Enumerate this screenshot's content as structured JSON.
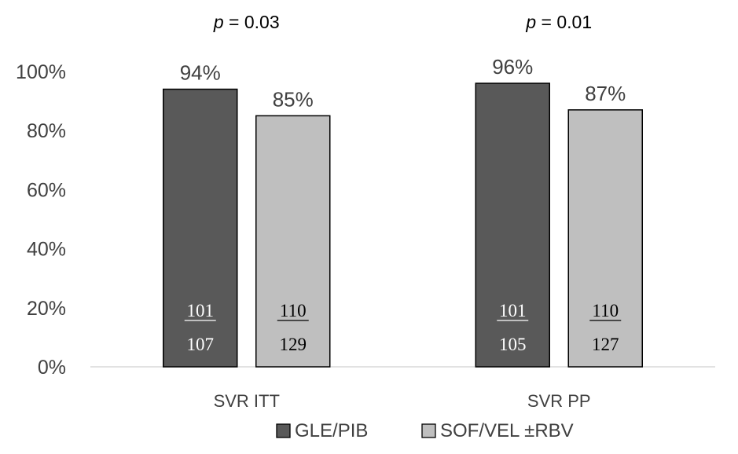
{
  "chart_data": {
    "type": "bar",
    "title": "",
    "xlabel": "",
    "ylabel": "",
    "categories": [
      "SVR ITT",
      "SVR PP"
    ],
    "ylim": [
      0,
      100
    ],
    "yticks": [
      "0%",
      "20%",
      "40%",
      "60%",
      "80%",
      "100%"
    ],
    "grid": false,
    "legend_position": "bottom",
    "series": [
      {
        "name": "GLE/PIB",
        "color": "#595959",
        "values": [
          94,
          96
        ],
        "value_labels": [
          "94%",
          "96%"
        ],
        "numerators": [
          "101",
          "101"
        ],
        "denominators": [
          "107",
          "105"
        ]
      },
      {
        "name": "SOF/VEL ±RBV",
        "color": "#bfbfbf",
        "values": [
          85,
          87
        ],
        "value_labels": [
          "85%",
          "87%"
        ],
        "numerators": [
          "110",
          "110"
        ],
        "denominators": [
          "129",
          "127"
        ]
      }
    ],
    "annotations": {
      "p_symbol": "p",
      "p_values": [
        " = 0.03",
        " = 0.01"
      ]
    }
  }
}
